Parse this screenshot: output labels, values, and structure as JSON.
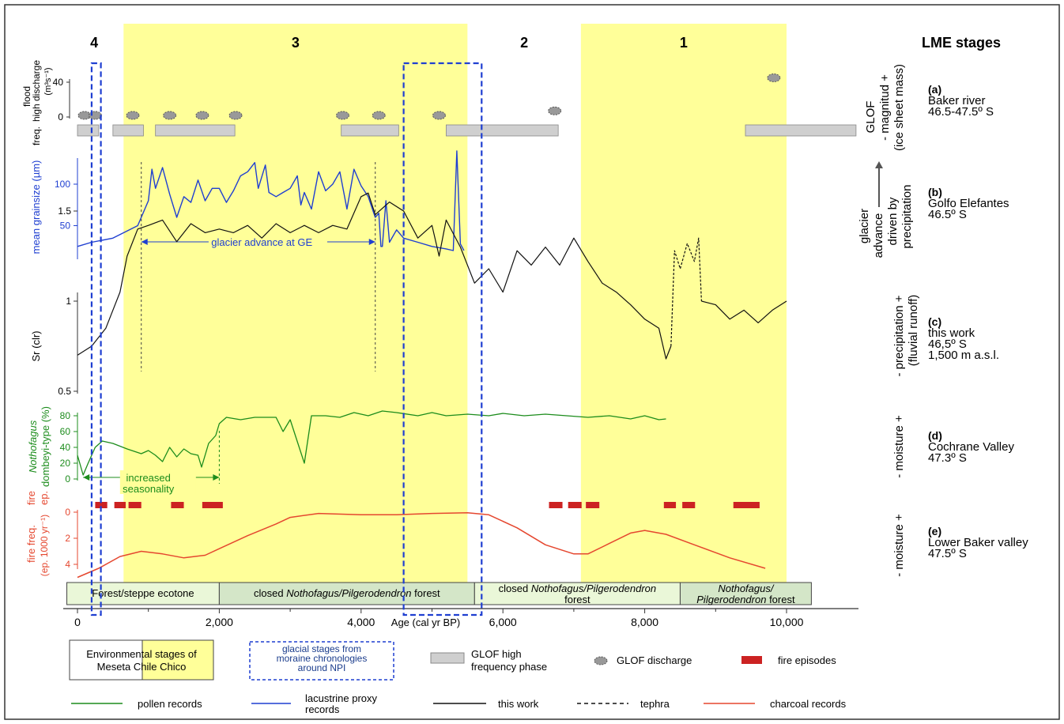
{
  "colors": {
    "yellow": "#ffff99",
    "blue": "#1f3fd1",
    "green": "#1c8c1c",
    "black": "#111111",
    "red": "#e5472f",
    "gray": "#cfcfcf",
    "firebar": "#cc2222",
    "stage_fill": "#eaf7d8",
    "stage_fill_dark": "#d4e6c8"
  },
  "header": {
    "stage_title": "LME stages",
    "stages": [
      {
        "label": "4",
        "x_from": 0,
        "x_to": 650
      },
      {
        "label": "3",
        "x_from": 650,
        "x_to": 5500
      },
      {
        "label": "2",
        "x_from": 5500,
        "x_to": 7100
      },
      {
        "label": "1",
        "x_from": 7100,
        "x_to": 10000
      }
    ]
  },
  "x_axis": {
    "label": "Age (cal yr BP)",
    "ticks": [
      "0",
      "2,000",
      "4,000",
      "6,000",
      "8,000",
      "10,000"
    ],
    "tick_values": [
      0,
      2000,
      4000,
      6000,
      8000,
      10000
    ]
  },
  "panels": [
    {
      "id": "a",
      "letter": "(a)",
      "site": "Baker river",
      "lat": "46.5-47.5º S",
      "interp": [
        "GLOF",
        "- magnitud +",
        "(ice sheet mass)"
      ],
      "ylabel": [
        "flood",
        "high discharge",
        "(m³s⁻¹)",
        "freq."
      ],
      "yticks": [
        "40",
        "0"
      ]
    },
    {
      "id": "b",
      "letter": "(b)",
      "site": "Golfo Elefantes",
      "lat": "46.5º S",
      "interp": [
        "glacier",
        "advance",
        "driven by",
        "precipitation"
      ],
      "ylabel": [
        "mean grainsize (µm)"
      ],
      "yticks": [
        "100",
        "50"
      ],
      "annotation": "glacier advance at GE"
    },
    {
      "id": "c",
      "letter": "(c)",
      "site": "this work",
      "lat": "46,5º S",
      "alt": "1,500 m a.s.l.",
      "interp": [
        "- precipitation +",
        "(fluvial runoff)"
      ],
      "ylabel": [
        "Sr (clr)"
      ],
      "yticks": [
        "1.5",
        "1",
        "0.5"
      ]
    },
    {
      "id": "d",
      "letter": "(d)",
      "site": "Cochrane Valley",
      "lat": "47.3º S",
      "interp": [
        "- moisture +"
      ],
      "ylabel": [
        "Nothofagus",
        "dombeyi-type (%)"
      ],
      "yticks": [
        "80",
        "60",
        "40",
        "20",
        "0"
      ],
      "annotation": [
        "increased",
        "seasonality"
      ]
    },
    {
      "id": "e",
      "letter": "(e)",
      "site": "Lower Baker valley",
      "lat": "47.5º S",
      "interp": [
        "- moisture +"
      ],
      "ylabel": [
        "fire",
        "ep.",
        "fire freq.",
        "(ep. 1000 yr⁻¹)"
      ],
      "yticks": [
        "0",
        "2",
        "4"
      ]
    }
  ],
  "veg_stages": [
    {
      "parts": [
        {
          "t": "Forest/steppe ecotone",
          "i": false
        }
      ],
      "x_from": -150,
      "x_to": 2000,
      "tone": "light"
    },
    {
      "parts": [
        {
          "t": "closed ",
          "i": false
        },
        {
          "t": "Nothofagus/Pilgerodendron",
          "i": true
        },
        {
          "t": " forest",
          "i": false
        }
      ],
      "x_from": 2000,
      "x_to": 5600,
      "tone": "dark"
    },
    {
      "parts": [
        {
          "t": "closed ",
          "i": false
        },
        {
          "t": "Nothofagus/Pilgerodendron",
          "i": true
        }
      ],
      "line2": [
        {
          "t": "forest",
          "i": false
        }
      ],
      "x_from": 5600,
      "x_to": 8500,
      "tone": "light"
    },
    {
      "parts": [
        {
          "t": "Nothofagus/",
          "i": true
        }
      ],
      "line2": [
        {
          "t": "Pilgerodendron",
          "i": true
        },
        {
          "t": " forest",
          "i": false
        }
      ],
      "x_from": 8500,
      "x_to": 10350,
      "tone": "dark"
    }
  ],
  "legend": {
    "env_stages": [
      "Environmental stages of",
      "Meseta Chile Chico"
    ],
    "glacial": [
      "glacial stages from",
      "moraine chronologies",
      "around NPI"
    ],
    "glof_phase": [
      "GLOF high",
      "frequency phase"
    ],
    "glof_discharge": "GLOF discharge",
    "fire": "fire episodes",
    "pollen": "pollen records",
    "lacustrine": [
      "lacustrine proxy",
      "records"
    ],
    "this_work": "this work",
    "tephra": "tephra",
    "charcoal": "charcoal records"
  },
  "chart_data": {
    "type": "line",
    "x_unit": "cal yr BP",
    "xlim": [
      0,
      10000
    ],
    "lme_yellow_intervals": [
      [
        650,
        5500
      ],
      [
        7100,
        10000
      ]
    ],
    "glacial_stage_intervals": [
      [
        200,
        330
      ],
      [
        4600,
        5700
      ]
    ],
    "glof_high_frequency_phases": [
      [
        0,
        300
      ],
      [
        500,
        930
      ],
      [
        1100,
        2220
      ],
      [
        3720,
        4530
      ],
      [
        5200,
        6780
      ],
      [
        9420,
        10980
      ]
    ],
    "glof_discharge_events": [
      {
        "age": 100,
        "flow": 0
      },
      {
        "age": 250,
        "flow": 0
      },
      {
        "age": 780,
        "flow": 0
      },
      {
        "age": 1300,
        "flow": 0
      },
      {
        "age": 1760,
        "flow": 0
      },
      {
        "age": 2230,
        "flow": 0
      },
      {
        "age": 3740,
        "flow": 0
      },
      {
        "age": 4250,
        "flow": 0
      },
      {
        "age": 5100,
        "flow": 0
      },
      {
        "age": 6730,
        "flow": 7
      },
      {
        "age": 9820,
        "flow": 45
      }
    ],
    "grainsize_um": [
      [
        0,
        25
      ],
      [
        200,
        30
      ],
      [
        500,
        35
      ],
      [
        850,
        50
      ],
      [
        1000,
        80
      ],
      [
        1050,
        118
      ],
      [
        1100,
        95
      ],
      [
        1200,
        120
      ],
      [
        1300,
        88
      ],
      [
        1400,
        60
      ],
      [
        1500,
        85
      ],
      [
        1600,
        78
      ],
      [
        1700,
        105
      ],
      [
        1800,
        80
      ],
      [
        1900,
        95
      ],
      [
        2000,
        95
      ],
      [
        2100,
        78
      ],
      [
        2200,
        92
      ],
      [
        2300,
        110
      ],
      [
        2400,
        115
      ],
      [
        2500,
        126
      ],
      [
        2550,
        95
      ],
      [
        2650,
        123
      ],
      [
        2700,
        90
      ],
      [
        2800,
        85
      ],
      [
        2900,
        90
      ],
      [
        3000,
        95
      ],
      [
        3100,
        110
      ],
      [
        3150,
        75
      ],
      [
        3200,
        90
      ],
      [
        3300,
        70
      ],
      [
        3400,
        115
      ],
      [
        3500,
        92
      ],
      [
        3600,
        100
      ],
      [
        3700,
        115
      ],
      [
        3800,
        70
      ],
      [
        3900,
        118
      ],
      [
        4000,
        98
      ],
      [
        4100,
        85
      ],
      [
        4200,
        60
      ],
      [
        4250,
        65
      ],
      [
        4280,
        25
      ],
      [
        4300,
        25
      ],
      [
        4350,
        80
      ],
      [
        4400,
        30
      ],
      [
        4500,
        45
      ],
      [
        4600,
        35
      ],
      [
        4800,
        30
      ],
      [
        5000,
        25
      ],
      [
        5200,
        22
      ],
      [
        5300,
        20
      ],
      [
        5350,
        140
      ],
      [
        5400,
        28
      ],
      [
        5450,
        20
      ]
    ],
    "sr_clr": [
      [
        0,
        0.7
      ],
      [
        200,
        0.75
      ],
      [
        400,
        0.85
      ],
      [
        600,
        1.05
      ],
      [
        700,
        1.25
      ],
      [
        850,
        1.4
      ],
      [
        1000,
        1.42
      ],
      [
        1200,
        1.45
      ],
      [
        1400,
        1.33
      ],
      [
        1600,
        1.43
      ],
      [
        1800,
        1.38
      ],
      [
        2000,
        1.4
      ],
      [
        2200,
        1.38
      ],
      [
        2400,
        1.42
      ],
      [
        2600,
        1.35
      ],
      [
        2800,
        1.43
      ],
      [
        3000,
        1.38
      ],
      [
        3200,
        1.42
      ],
      [
        3400,
        1.38
      ],
      [
        3600,
        1.42
      ],
      [
        3800,
        1.4
      ],
      [
        4000,
        1.58
      ],
      [
        4100,
        1.6
      ],
      [
        4200,
        1.48
      ],
      [
        4400,
        1.55
      ],
      [
        4600,
        1.5
      ],
      [
        4800,
        1.35
      ],
      [
        5000,
        1.42
      ],
      [
        5100,
        1.25
      ],
      [
        5200,
        1.45
      ],
      [
        5400,
        1.3
      ],
      [
        5600,
        1.1
      ],
      [
        5800,
        1.18
      ],
      [
        6000,
        1.05
      ],
      [
        6200,
        1.28
      ],
      [
        6400,
        1.2
      ],
      [
        6600,
        1.3
      ],
      [
        6800,
        1.2
      ],
      [
        7000,
        1.35
      ],
      [
        7200,
        1.22
      ],
      [
        7400,
        1.1
      ],
      [
        7600,
        1.05
      ],
      [
        7800,
        0.98
      ],
      [
        8000,
        0.9
      ],
      [
        8200,
        0.85
      ],
      [
        8300,
        0.68
      ],
      [
        8370,
        0.75
      ]
    ],
    "sr_clr_tephra": [
      [
        8370,
        0.75
      ],
      [
        8420,
        1.28
      ],
      [
        8500,
        1.18
      ],
      [
        8600,
        1.32
      ],
      [
        8700,
        1.22
      ],
      [
        8760,
        1.35
      ],
      [
        8800,
        1.0
      ]
    ],
    "sr_clr_after_tephra": [
      [
        8800,
        1.0
      ],
      [
        9000,
        0.98
      ],
      [
        9200,
        0.9
      ],
      [
        9400,
        0.95
      ],
      [
        9600,
        0.88
      ],
      [
        9800,
        0.95
      ],
      [
        10000,
        1.0
      ]
    ],
    "nothofagus_pct": [
      [
        0,
        30
      ],
      [
        80,
        5
      ],
      [
        150,
        20
      ],
      [
        250,
        40
      ],
      [
        350,
        48
      ],
      [
        500,
        45
      ],
      [
        700,
        38
      ],
      [
        900,
        32
      ],
      [
        1000,
        36
      ],
      [
        1100,
        30
      ],
      [
        1200,
        22
      ],
      [
        1300,
        40
      ],
      [
        1400,
        28
      ],
      [
        1500,
        38
      ],
      [
        1600,
        32
      ],
      [
        1700,
        30
      ],
      [
        1750,
        15
      ],
      [
        1850,
        45
      ],
      [
        1950,
        55
      ],
      [
        2000,
        70
      ],
      [
        2100,
        78
      ],
      [
        2300,
        75
      ],
      [
        2500,
        78
      ],
      [
        2800,
        78
      ],
      [
        2900,
        60
      ],
      [
        3000,
        75
      ],
      [
        3200,
        20
      ],
      [
        3300,
        80
      ],
      [
        3500,
        80
      ],
      [
        3700,
        78
      ],
      [
        3900,
        84
      ],
      [
        4100,
        80
      ],
      [
        4300,
        86
      ],
      [
        4500,
        84
      ],
      [
        4800,
        80
      ],
      [
        5000,
        84
      ],
      [
        5200,
        80
      ],
      [
        5500,
        82
      ],
      [
        5800,
        80
      ],
      [
        6000,
        83
      ],
      [
        6300,
        80
      ],
      [
        6600,
        82
      ],
      [
        6900,
        80
      ],
      [
        7200,
        78
      ],
      [
        7500,
        80
      ],
      [
        7800,
        76
      ],
      [
        8000,
        80
      ],
      [
        8200,
        75
      ],
      [
        8300,
        76
      ]
    ],
    "fire_episodes": [
      [
        250,
        420
      ],
      [
        520,
        680
      ],
      [
        720,
        900
      ],
      [
        1320,
        1500
      ],
      [
        1760,
        2050
      ],
      [
        6650,
        6840
      ],
      [
        6920,
        7110
      ],
      [
        7170,
        7360
      ],
      [
        8270,
        8440
      ],
      [
        8530,
        8710
      ],
      [
        9250,
        9620
      ]
    ],
    "fire_freq": [
      [
        0,
        5
      ],
      [
        300,
        4.3
      ],
      [
        600,
        3.4
      ],
      [
        900,
        3.0
      ],
      [
        1200,
        3.2
      ],
      [
        1500,
        3.5
      ],
      [
        1800,
        3.3
      ],
      [
        2000,
        2.8
      ],
      [
        2400,
        1.8
      ],
      [
        2800,
        0.9
      ],
      [
        3000,
        0.4
      ],
      [
        3400,
        0.1
      ],
      [
        4000,
        0.2
      ],
      [
        4500,
        0.2
      ],
      [
        5000,
        0.1
      ],
      [
        5500,
        0.05
      ],
      [
        5800,
        0.2
      ],
      [
        6200,
        1.2
      ],
      [
        6600,
        2.5
      ],
      [
        7000,
        3.2
      ],
      [
        7200,
        3.2
      ],
      [
        7500,
        2.4
      ],
      [
        7800,
        1.6
      ],
      [
        8000,
        1.4
      ],
      [
        8300,
        1.7
      ],
      [
        8700,
        2.5
      ],
      [
        9200,
        3.5
      ],
      [
        9700,
        4.3
      ]
    ]
  }
}
